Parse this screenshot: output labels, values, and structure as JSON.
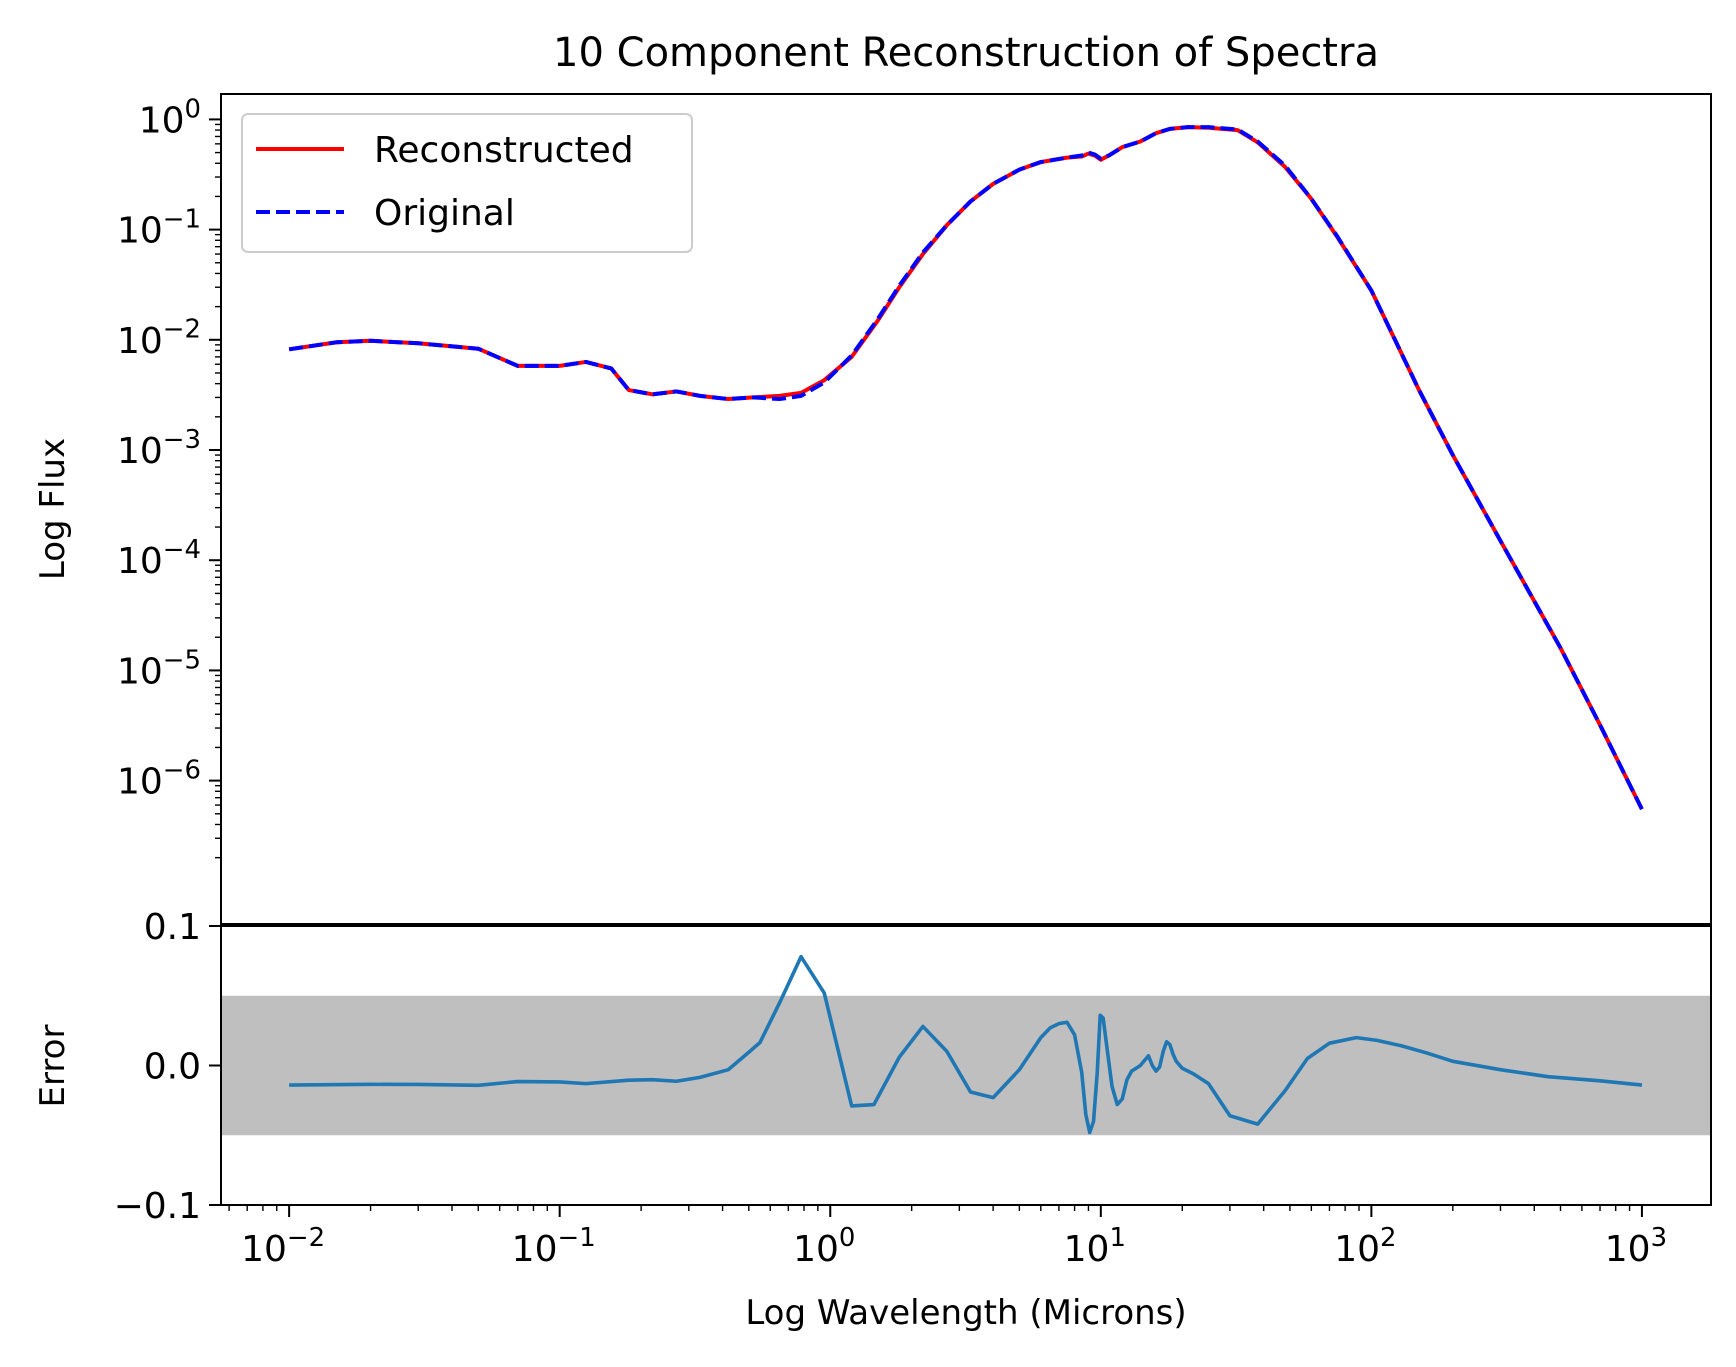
{
  "chart_data": [
    {
      "type": "line",
      "title": "10 Component Reconstruction of Spectra",
      "xlabel": "Log Wavelength (Microns)",
      "ylabel": "Log Flux",
      "x_scale": "log",
      "y_scale": "log",
      "xlim": [
        0.0056,
        1800
      ],
      "ylim": [
        5e-08,
        1.7
      ],
      "legend": {
        "placement": "upper-left",
        "entries": [
          "Reconstructed",
          "Original"
        ]
      },
      "x_ticks": [
        {
          "value": 0.01,
          "base": "10",
          "exp": "−2"
        },
        {
          "value": 0.1,
          "base": "10",
          "exp": "−1"
        },
        {
          "value": 1,
          "base": "10",
          "exp": "0"
        },
        {
          "value": 10,
          "base": "10",
          "exp": "1"
        },
        {
          "value": 100,
          "base": "10",
          "exp": "2"
        },
        {
          "value": 1000,
          "base": "10",
          "exp": "3"
        }
      ],
      "y_ticks": [
        {
          "value": 1,
          "base": "10",
          "exp": "0"
        },
        {
          "value": 0.1,
          "base": "10",
          "exp": "−1"
        },
        {
          "value": 0.01,
          "base": "10",
          "exp": "−2"
        },
        {
          "value": 0.001,
          "base": "10",
          "exp": "−3"
        },
        {
          "value": 0.0001,
          "base": "10",
          "exp": "−4"
        },
        {
          "value": 1e-05,
          "base": "10",
          "exp": "−5"
        },
        {
          "value": 1e-06,
          "base": "10",
          "exp": "−6"
        }
      ],
      "series": [
        {
          "name": "Reconstructed",
          "style": "solid",
          "color": "#ff0000",
          "x": [
            0.01,
            0.015,
            0.02,
            0.03,
            0.05,
            0.07,
            0.1,
            0.125,
            0.155,
            0.18,
            0.22,
            0.27,
            0.33,
            0.42,
            0.52,
            0.65,
            0.78,
            0.95,
            1.2,
            1.5,
            1.8,
            2.2,
            2.7,
            3.3,
            4.0,
            5.0,
            6.0,
            7.5,
            8.5,
            9.0,
            9.5,
            10.0,
            10.7,
            12.0,
            14.0,
            16.0,
            18.0,
            21.0,
            25.0,
            32.0,
            38.0,
            48.0,
            60.0,
            75.0,
            100.0,
            150.0,
            200.0,
            300.0,
            500.0,
            700.0,
            1000.0
          ],
          "y": [
            0.0082,
            0.0095,
            0.0098,
            0.0093,
            0.0083,
            0.0058,
            0.0058,
            0.0063,
            0.0055,
            0.0035,
            0.0032,
            0.0034,
            0.0031,
            0.0029,
            0.003,
            0.0031,
            0.0033,
            0.0043,
            0.007,
            0.015,
            0.03,
            0.06,
            0.11,
            0.18,
            0.26,
            0.35,
            0.41,
            0.45,
            0.46,
            0.49,
            0.47,
            0.43,
            0.47,
            0.56,
            0.63,
            0.75,
            0.82,
            0.85,
            0.84,
            0.8,
            0.62,
            0.37,
            0.19,
            0.085,
            0.028,
            0.0035,
            0.0009,
            0.00015,
            1.6e-05,
            3.2e-06,
            5.5e-07
          ]
        },
        {
          "name": "Original",
          "style": "dashed",
          "color": "#0000ff",
          "x": [
            0.01,
            0.015,
            0.02,
            0.03,
            0.05,
            0.07,
            0.1,
            0.125,
            0.155,
            0.18,
            0.22,
            0.27,
            0.33,
            0.42,
            0.52,
            0.65,
            0.78,
            0.95,
            1.2,
            1.5,
            1.8,
            2.2,
            2.7,
            3.3,
            4.0,
            5.0,
            6.0,
            7.5,
            8.5,
            9.0,
            9.5,
            10.0,
            10.7,
            12.0,
            14.0,
            16.0,
            18.0,
            21.0,
            25.0,
            32.0,
            38.0,
            48.0,
            60.0,
            75.0,
            100.0,
            150.0,
            200.0,
            300.0,
            500.0,
            700.0,
            1000.0
          ],
          "y": [
            0.0082,
            0.0095,
            0.0098,
            0.0093,
            0.0083,
            0.0058,
            0.0058,
            0.0063,
            0.0055,
            0.0035,
            0.0032,
            0.0034,
            0.0031,
            0.0029,
            0.003,
            0.0029,
            0.0031,
            0.0041,
            0.0072,
            0.0155,
            0.031,
            0.062,
            0.11,
            0.18,
            0.26,
            0.35,
            0.41,
            0.45,
            0.47,
            0.5,
            0.48,
            0.44,
            0.47,
            0.56,
            0.63,
            0.75,
            0.82,
            0.85,
            0.85,
            0.81,
            0.63,
            0.38,
            0.19,
            0.086,
            0.028,
            0.0035,
            0.0009,
            0.00015,
            1.6e-05,
            3.2e-06,
            5.5e-07
          ]
        }
      ]
    },
    {
      "type": "line",
      "xlabel": "Log Wavelength (Microns)",
      "ylabel": "Error",
      "x_scale": "log",
      "xlim": [
        0.0056,
        1800
      ],
      "ylim": [
        -0.1,
        0.1
      ],
      "y_ticks": [
        "0.1",
        "0.0",
        "−0.1"
      ],
      "y_tick_values": [
        0.1,
        0.0,
        -0.1
      ],
      "band": [
        -0.05,
        0.05
      ],
      "band_color": "#bfbfbf",
      "series": [
        {
          "color": "#1f77b4",
          "x": [
            0.01,
            0.02,
            0.03,
            0.05,
            0.07,
            0.1,
            0.125,
            0.18,
            0.22,
            0.27,
            0.33,
            0.42,
            0.5,
            0.55,
            0.65,
            0.78,
            0.95,
            1.2,
            1.45,
            1.8,
            2.2,
            2.7,
            3.3,
            4.0,
            5.0,
            6.0,
            6.5,
            7.0,
            7.5,
            8.0,
            8.5,
            8.8,
            9.1,
            9.4,
            9.7,
            9.95,
            10.2,
            10.5,
            11.0,
            11.5,
            12.0,
            12.5,
            13.0,
            14.0,
            15.0,
            15.5,
            16.0,
            16.5,
            17.0,
            17.5,
            18.0,
            18.5,
            19.0,
            20.0,
            22.0,
            25.0,
            30.0,
            38.0,
            48.0,
            58.0,
            70.0,
            88.0,
            105.0,
            130.0,
            160.0,
            200.0,
            300.0,
            450.0,
            700.0,
            1000.0
          ],
          "y": [
            -0.014,
            -0.0135,
            -0.0136,
            -0.0142,
            -0.0115,
            -0.0118,
            -0.013,
            -0.0105,
            -0.0102,
            -0.0113,
            -0.0085,
            -0.003,
            0.0095,
            0.0165,
            0.045,
            0.078,
            0.052,
            -0.029,
            -0.028,
            0.006,
            0.028,
            0.01,
            -0.019,
            -0.023,
            -0.003,
            0.02,
            0.027,
            0.03,
            0.031,
            0.022,
            -0.005,
            -0.035,
            -0.048,
            -0.04,
            -0.005,
            0.036,
            0.034,
            0.015,
            -0.015,
            -0.028,
            -0.024,
            -0.01,
            -0.004,
            0.0,
            0.007,
            0.0,
            -0.004,
            -0.001,
            0.01,
            0.017,
            0.015,
            0.008,
            0.003,
            -0.002,
            -0.006,
            -0.013,
            -0.036,
            -0.042,
            -0.018,
            0.005,
            0.016,
            0.02,
            0.018,
            0.014,
            0.009,
            0.003,
            -0.003,
            -0.008,
            -0.011,
            -0.014
          ]
        }
      ]
    }
  ]
}
